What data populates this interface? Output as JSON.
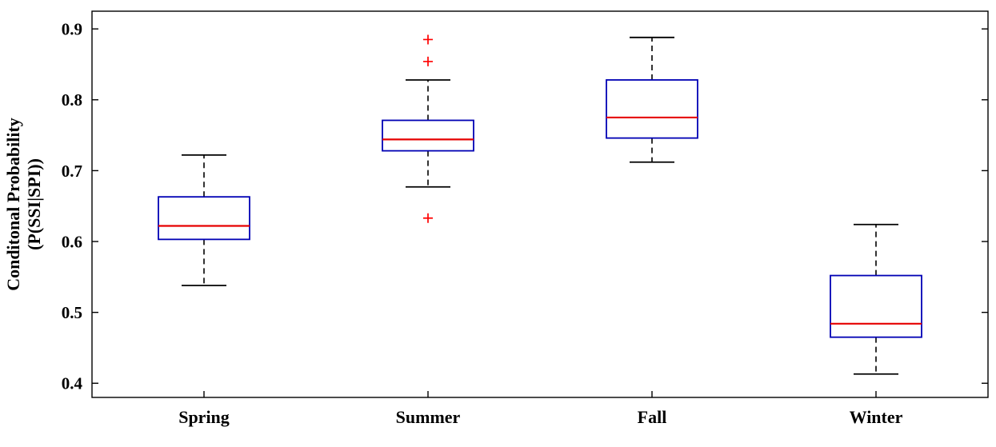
{
  "figure": {
    "background": "#ffffff",
    "y_axis": {
      "label_line1": "Conditonal Probability",
      "label_line2": "(P(SSI|SPI))",
      "tick_labels": [
        "0.4",
        "0.5",
        "0.6",
        "0.7",
        "0.8",
        "0.9"
      ]
    },
    "colors": {
      "box": "#0000b4",
      "median": "#e60000",
      "whisker": "#000000",
      "outlier": "#ff0000",
      "axis": "#000000"
    }
  },
  "chart_data": {
    "type": "box",
    "title": "",
    "xlabel": "",
    "ylabel": "Conditonal Probability (P(SSI|SPI))",
    "categories": [
      "Spring",
      "Summer",
      "Fall",
      "Winter"
    ],
    "ylim": [
      0.38,
      0.925
    ],
    "yticks": [
      0.4,
      0.5,
      0.6,
      0.7,
      0.8,
      0.9
    ],
    "grid": false,
    "legend": null,
    "series": [
      {
        "name": "Spring",
        "whisker_low": 0.538,
        "q1": 0.603,
        "median": 0.622,
        "q3": 0.663,
        "whisker_high": 0.722,
        "outliers": []
      },
      {
        "name": "Summer",
        "whisker_low": 0.677,
        "q1": 0.728,
        "median": 0.744,
        "q3": 0.771,
        "whisker_high": 0.828,
        "outliers": [
          0.885,
          0.854,
          0.633
        ]
      },
      {
        "name": "Fall",
        "whisker_low": 0.712,
        "q1": 0.746,
        "median": 0.775,
        "q3": 0.828,
        "whisker_high": 0.888,
        "outliers": []
      },
      {
        "name": "Winter",
        "whisker_low": 0.413,
        "q1": 0.465,
        "median": 0.484,
        "q3": 0.552,
        "whisker_high": 0.624,
        "outliers": []
      }
    ]
  }
}
